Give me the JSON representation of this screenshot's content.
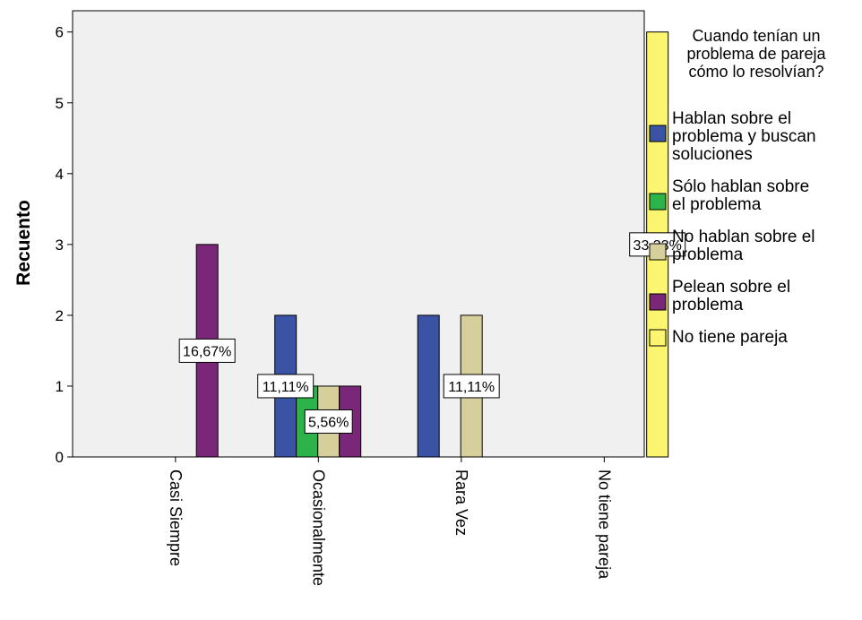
{
  "chart_data": {
    "type": "bar",
    "ylabel": "Recuento",
    "xlabel": "",
    "ylim": [
      0,
      6.3
    ],
    "yticks": [
      0,
      1,
      2,
      3,
      4,
      5,
      6
    ],
    "categories": [
      "Casi Siempre",
      "Ocasionalmente",
      "Rara Vez",
      "No tiene pareja"
    ],
    "legend_title": [
      "Cuando tenían un",
      "problema de pareja",
      "cómo lo resolvían?"
    ],
    "legend_position": "right",
    "grid": false,
    "series": [
      {
        "name": "Hablan sobre el problema y buscan soluciones",
        "legend_lines": [
          "Hablan sobre el",
          "problema y buscan",
          "soluciones"
        ],
        "color": "#3A53A4",
        "values": [
          0,
          2,
          2,
          0
        ]
      },
      {
        "name": "Sólo hablan sobre el problema",
        "legend_lines": [
          "Sólo hablan sobre",
          "el problema"
        ],
        "color": "#2CB34A",
        "values": [
          0,
          1,
          0,
          0
        ]
      },
      {
        "name": "No hablan sobre el problema",
        "legend_lines": [
          "No hablan sobre el",
          "problema"
        ],
        "color": "#D6CF9C",
        "values": [
          0,
          1,
          2,
          0
        ]
      },
      {
        "name": "Pelean sobre el problema",
        "legend_lines": [
          "Pelean sobre el",
          "problema"
        ],
        "color": "#7B2779",
        "values": [
          3,
          1,
          0,
          0
        ]
      },
      {
        "name": "No tiene pareja",
        "legend_lines": [
          "No tiene pareja"
        ],
        "color": "#FBF56F",
        "values": [
          0,
          0,
          0,
          6
        ]
      }
    ],
    "data_labels": [
      {
        "text": "16,67%",
        "category": 0,
        "series": 3
      },
      {
        "text": "11,11%",
        "category": 1,
        "series": 0
      },
      {
        "text": "5,56%",
        "category": 1,
        "series": 2
      },
      {
        "text": "11,11%",
        "category": 2,
        "series": 2
      },
      {
        "text": "33,33%",
        "category": 3,
        "series": 4
      }
    ],
    "colors": {
      "plot_background": "#F0F0F0",
      "bar_edge": "#000000"
    }
  }
}
